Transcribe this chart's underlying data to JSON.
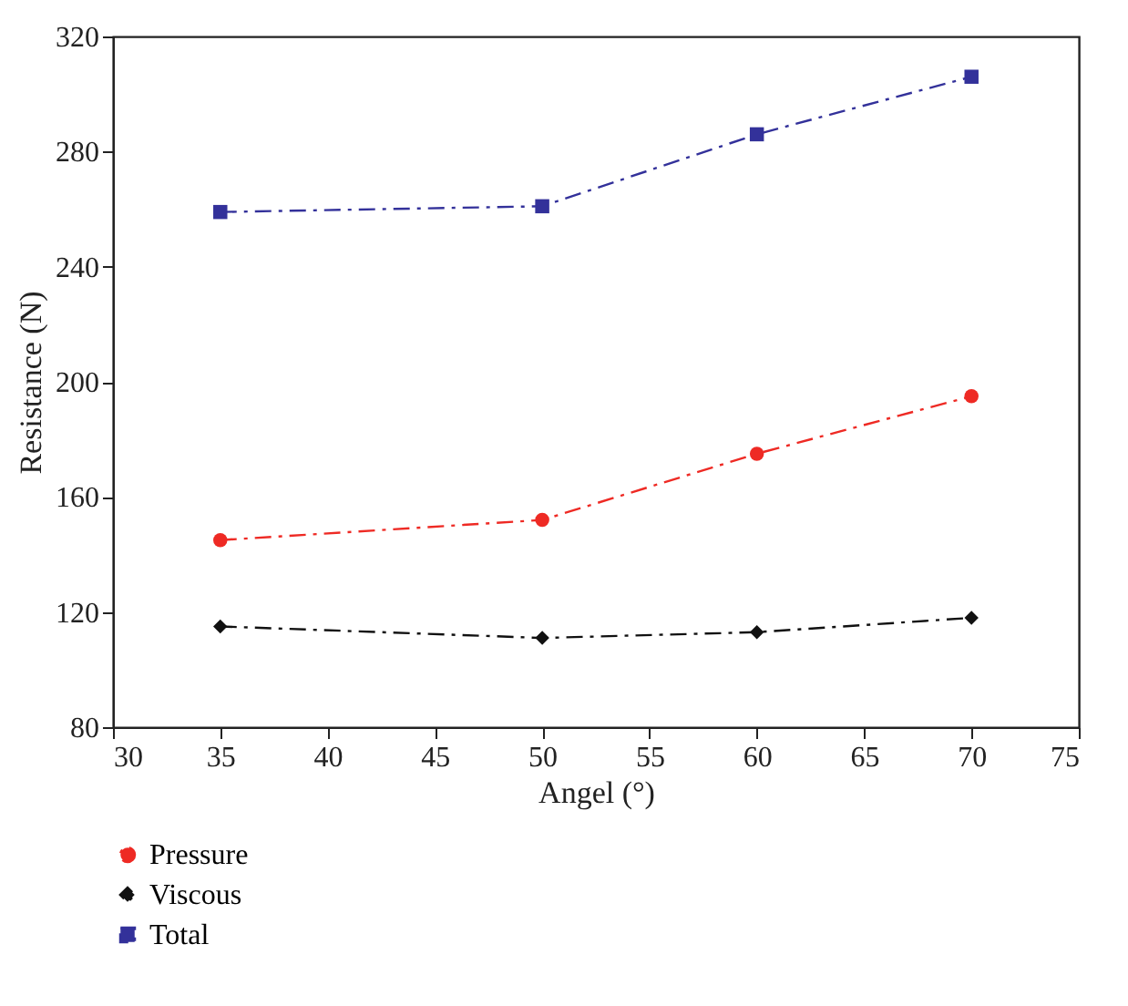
{
  "chart_data": {
    "type": "line",
    "xlabel": "Angel (°)",
    "ylabel": "Resistance (N)",
    "x": [
      35,
      50,
      60,
      70
    ],
    "series": [
      {
        "name": "Pressure",
        "color": "#ee2a24",
        "marker": "circle",
        "values": [
          145,
          152,
          175,
          195
        ]
      },
      {
        "name": "Viscous",
        "color": "#111111",
        "marker": "diamond",
        "values": [
          115,
          111,
          113,
          118
        ]
      },
      {
        "name": "Total",
        "color": "#33319a",
        "marker": "square",
        "values": [
          259,
          261,
          286,
          306
        ]
      }
    ],
    "xlim": [
      30,
      75
    ],
    "xticks": [
      30,
      35,
      40,
      45,
      50,
      55,
      60,
      65,
      70,
      75
    ],
    "ylim": [
      80,
      320
    ],
    "yticks": [
      80,
      120,
      160,
      200,
      240,
      280,
      320
    ],
    "grid": false,
    "legend": "bottom",
    "line_style": "dashed"
  }
}
